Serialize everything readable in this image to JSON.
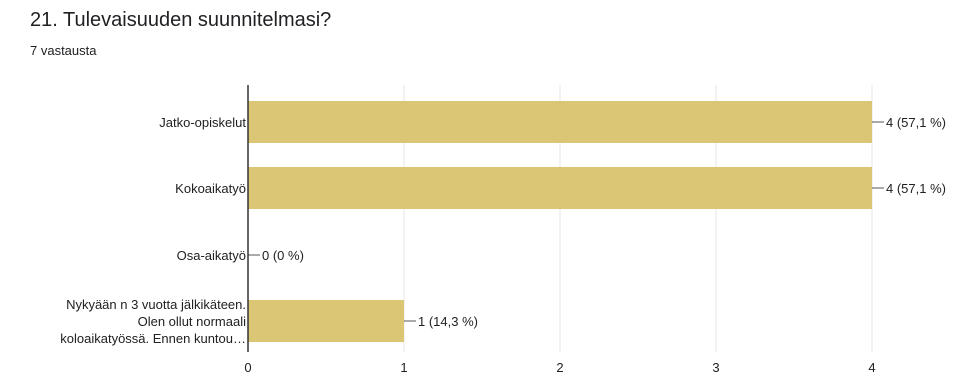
{
  "question": {
    "title": "21. Tulevaisuuden suunnitelmasi?",
    "responses": "7 vastausta"
  },
  "colors": {
    "bar": "#dbc675",
    "grid": "#e6e6e6",
    "axis": "#333333",
    "text": "#212121"
  },
  "chart_data": {
    "type": "bar",
    "orientation": "horizontal",
    "categories": [
      "Jatko-opiskelut",
      "Kokoaikatyö",
      "Osa-aikatyö",
      "Nykyään n 3 vuotta jälkikäteen. Olen ollut normaali koloaikatyössä. Ennen kuntou…"
    ],
    "category_lines": [
      [
        "Jatko-opiskelut"
      ],
      [
        "Kokoaikatyö"
      ],
      [
        "Osa-aikatyö"
      ],
      [
        "Nykyään n 3 vuotta jälkikäteen.",
        "Olen ollut normaali",
        "koloaikatyössä. Ennen kuntou…"
      ]
    ],
    "values": [
      4,
      4,
      0,
      1
    ],
    "data_labels": [
      "4 (57,1 %)",
      "4 (57,1 %)",
      "0 (0 %)",
      "1 (14,3 %)"
    ],
    "xlim": [
      0,
      4
    ],
    "x_ticks": [
      0,
      1,
      2,
      3,
      4
    ],
    "grid": true,
    "legend": "none"
  }
}
